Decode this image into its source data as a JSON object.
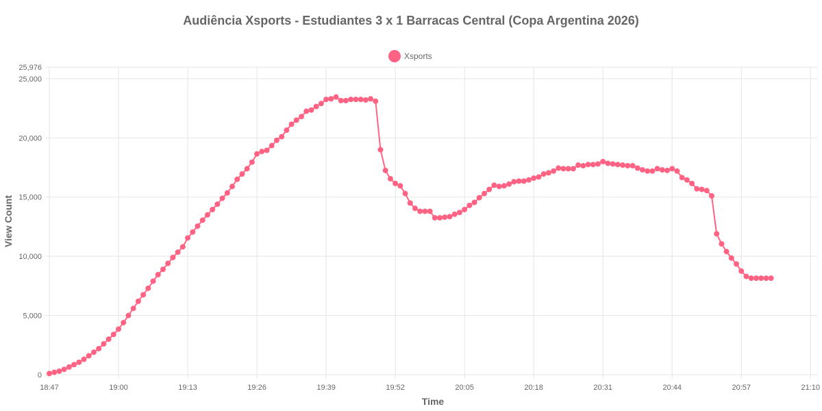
{
  "chart_data": {
    "type": "line",
    "title": "Audiência Xsports - Estudiantes 3 x 1 Barracas Central (Copa Argentina 2026)",
    "xlabel": "Time",
    "ylabel": "View Count",
    "ylim": [
      0,
      25976
    ],
    "yticks": [
      "0",
      "5,000",
      "10,000",
      "15,000",
      "20,000",
      "25,000",
      "25,976"
    ],
    "ytick_values": [
      0,
      5000,
      10000,
      15000,
      20000,
      25000,
      25976
    ],
    "xticks": [
      "18:47",
      "19:00",
      "19:13",
      "19:26",
      "19:39",
      "19:52",
      "20:05",
      "20:18",
      "20:31",
      "20:44",
      "20:57",
      "21:10"
    ],
    "grid": true,
    "legend_position": "top",
    "series": [
      {
        "name": "Xsports",
        "color": "#ff6384",
        "values": [
          100,
          200,
          300,
          450,
          650,
          850,
          1050,
          1300,
          1600,
          1900,
          2200,
          2600,
          3000,
          3400,
          3850,
          4400,
          5000,
          5600,
          6200,
          6750,
          7300,
          7900,
          8450,
          8900,
          9400,
          9900,
          10350,
          10800,
          11550,
          12050,
          12550,
          13050,
          13500,
          13950,
          14400,
          14900,
          15350,
          15900,
          16500,
          16950,
          17400,
          17950,
          18650,
          18850,
          18950,
          19350,
          19800,
          20100,
          20650,
          21150,
          21500,
          21800,
          22250,
          22350,
          22650,
          22900,
          23250,
          23300,
          23450,
          23150,
          23150,
          23250,
          23250,
          23250,
          23200,
          23300,
          23100,
          19000,
          17250,
          16550,
          16150,
          15950,
          15300,
          14500,
          14050,
          13800,
          13800,
          13800,
          13250,
          13250,
          13300,
          13350,
          13550,
          13700,
          13950,
          14300,
          14550,
          14950,
          15300,
          15650,
          16000,
          15900,
          15950,
          16100,
          16300,
          16350,
          16350,
          16450,
          16600,
          16700,
          16950,
          17050,
          17200,
          17450,
          17400,
          17400,
          17400,
          17700,
          17650,
          17750,
          17750,
          17800,
          18000,
          17850,
          17800,
          17750,
          17700,
          17650,
          17650,
          17450,
          17300,
          17200,
          17200,
          17400,
          17300,
          17250,
          17400,
          17200,
          16650,
          16450,
          16150,
          15700,
          15650,
          15550,
          15100,
          11900,
          11050,
          10400,
          9850,
          9350,
          8750,
          8300,
          8150,
          8150,
          8150,
          8150,
          8150
        ]
      }
    ]
  }
}
